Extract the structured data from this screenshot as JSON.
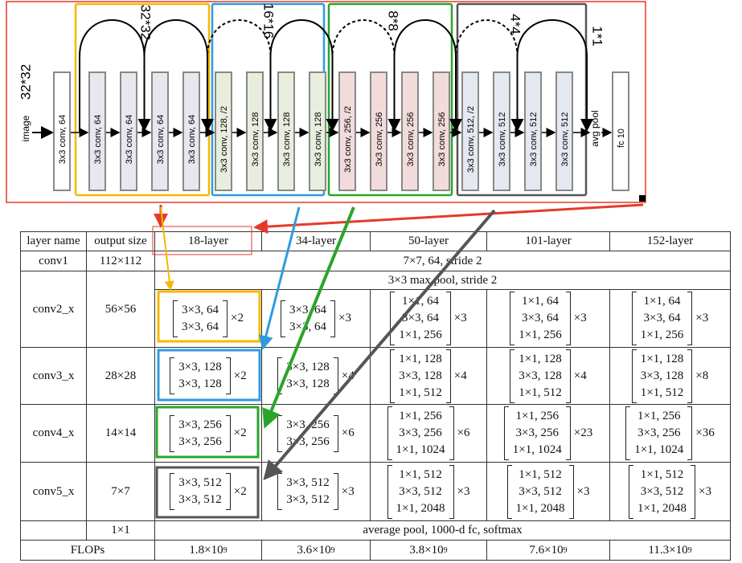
{
  "diagram": {
    "input": {
      "label": "image",
      "size": "32*32"
    },
    "first_layer": "3x3 conv, 64",
    "groups": [
      {
        "size": "32*32",
        "layers": [
          "3x3 conv, 64",
          "3x3 conv, 64",
          "3x3 conv, 64",
          "3x3 conv, 64"
        ]
      },
      {
        "size": "16*16",
        "layers": [
          "3x3 conv, 128, /2",
          "3x3 conv, 128",
          "3x3 conv, 128",
          "3x3 conv, 128"
        ]
      },
      {
        "size": "8*8",
        "layers": [
          "3x3 conv, 256, /2",
          "3x3 conv, 256",
          "3x3 conv, 256",
          "3x3 conv, 256"
        ]
      },
      {
        "size": "4*4",
        "layers": [
          "3x3 conv, 512, /2",
          "3x3 conv, 512",
          "3x3 conv, 512",
          "3x3 conv, 512"
        ]
      }
    ],
    "pool": "avg pool",
    "pool_size": "1*1",
    "fc": "fc 10"
  },
  "table": {
    "header": [
      "layer name",
      "output size",
      "18-layer",
      "34-layer",
      "50-layer",
      "101-layer",
      "152-layer"
    ],
    "rows": [
      {
        "name": "conv1",
        "output": "112×112",
        "spec": "7×7, 64, stride 2"
      },
      {
        "name": "conv2_x",
        "output": "56×56",
        "pre": "3×3 max pool, stride 2",
        "blocks": [
          {
            "lines": [
              "3×3, 64",
              "3×3, 64"
            ],
            "times": "×2"
          },
          {
            "lines": [
              "3×3, 64",
              "3×3, 64"
            ],
            "times": "×3"
          },
          {
            "lines": [
              "1×1, 64",
              "3×3, 64",
              "1×1, 256"
            ],
            "times": "×3"
          },
          {
            "lines": [
              "1×1, 64",
              "3×3, 64",
              "1×1, 256"
            ],
            "times": "×3"
          },
          {
            "lines": [
              "1×1, 64",
              "3×3, 64",
              "1×1, 256"
            ],
            "times": "×3"
          }
        ]
      },
      {
        "name": "conv3_x",
        "output": "28×28",
        "blocks": [
          {
            "lines": [
              "3×3, 128",
              "3×3, 128"
            ],
            "times": "×2"
          },
          {
            "lines": [
              "3×3, 128",
              "3×3, 128"
            ],
            "times": "×4"
          },
          {
            "lines": [
              "1×1, 128",
              "3×3, 128",
              "1×1, 512"
            ],
            "times": "×4"
          },
          {
            "lines": [
              "1×1, 128",
              "3×3, 128",
              "1×1, 512"
            ],
            "times": "×4"
          },
          {
            "lines": [
              "1×1, 128",
              "3×3, 128",
              "1×1, 512"
            ],
            "times": "×8"
          }
        ]
      },
      {
        "name": "conv4_x",
        "output": "14×14",
        "blocks": [
          {
            "lines": [
              "3×3, 256",
              "3×3, 256"
            ],
            "times": "×2"
          },
          {
            "lines": [
              "3×3, 256",
              "3×3, 256"
            ],
            "times": "×6"
          },
          {
            "lines": [
              "1×1, 256",
              "3×3, 256",
              "1×1, 1024"
            ],
            "times": "×6"
          },
          {
            "lines": [
              "1×1, 256",
              "3×3, 256",
              "1×1, 1024"
            ],
            "times": "×23"
          },
          {
            "lines": [
              "1×1, 256",
              "3×3, 256",
              "1×1, 1024"
            ],
            "times": "×36"
          }
        ]
      },
      {
        "name": "conv5_x",
        "output": "7×7",
        "blocks": [
          {
            "lines": [
              "3×3, 512",
              "3×3, 512"
            ],
            "times": "×2"
          },
          {
            "lines": [
              "3×3, 512",
              "3×3, 512"
            ],
            "times": "×3"
          },
          {
            "lines": [
              "1×1, 512",
              "3×3, 512",
              "1×1, 2048"
            ],
            "times": "×3"
          },
          {
            "lines": [
              "1×1, 512",
              "3×3, 512",
              "1×1, 2048"
            ],
            "times": "×3"
          },
          {
            "lines": [
              "1×1, 512",
              "3×3, 512",
              "1×1, 2048"
            ],
            "times": "×3"
          }
        ]
      },
      {
        "output": "1×1",
        "spec": "average pool, 1000-d fc, softmax"
      },
      {
        "name": "FLOPs",
        "flops": [
          {
            "base": "1.8×10",
            "exp": "9"
          },
          {
            "base": "3.6×10",
            "exp": "9"
          },
          {
            "base": "3.8×10",
            "exp": "9"
          },
          {
            "base": "7.6×10",
            "exp": "9"
          },
          {
            "base": "11.3×10",
            "exp": "9"
          }
        ]
      }
    ]
  }
}
